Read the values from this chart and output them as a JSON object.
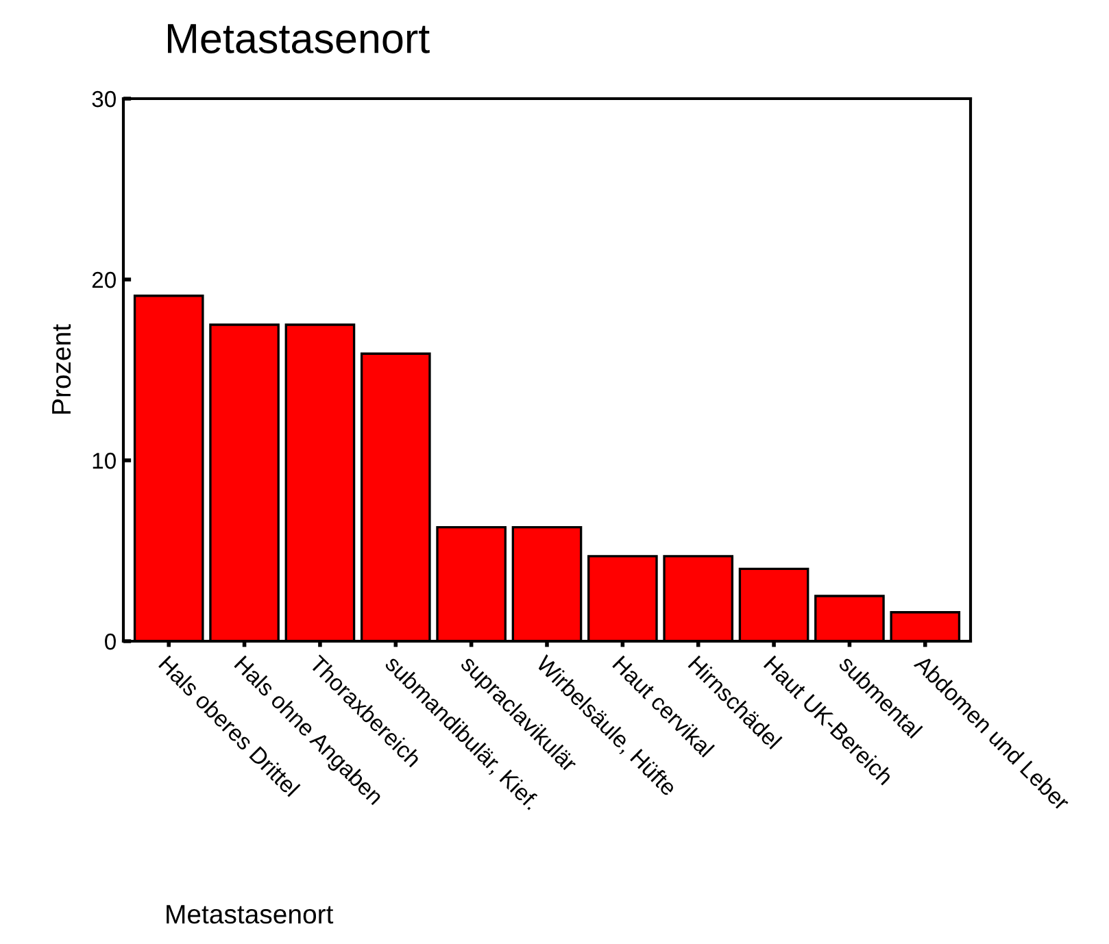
{
  "chart_data": {
    "type": "bar",
    "title": "Metastasenort",
    "xlabel": "Metastasenort",
    "ylabel": "Prozent",
    "categories": [
      "Hals oberes Drittel",
      "Hals ohne Angaben",
      "Thoraxbereich",
      "submandibulär, Kief.",
      "supraclavikulär",
      "Wirbelsäule, Hüfte",
      "Haut cervikal",
      "Hirnschädel",
      "Haut UK-Bereich",
      "submental",
      "Abdomen und Leber"
    ],
    "values": [
      19.1,
      17.5,
      17.5,
      15.9,
      6.3,
      6.3,
      4.7,
      4.7,
      4.0,
      2.5,
      1.6
    ],
    "color": "#ff0000",
    "ylim": [
      0,
      30
    ],
    "yticks": [
      0,
      10,
      20,
      30
    ],
    "grid": false
  }
}
